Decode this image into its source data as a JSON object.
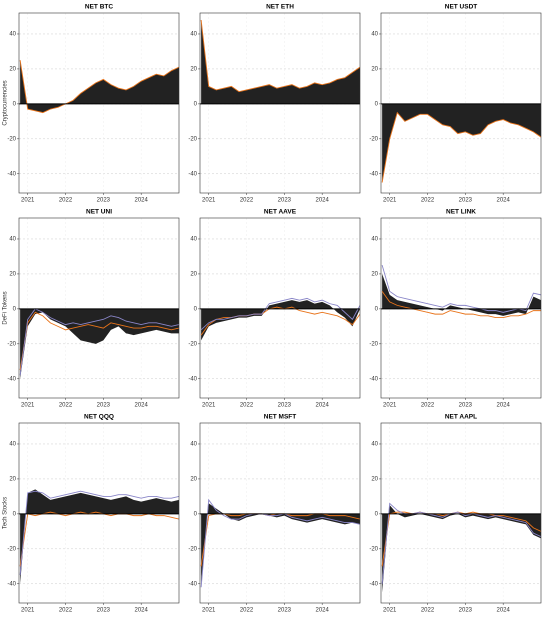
{
  "chart_data": [
    {
      "type": "area",
      "title": "NET BTC",
      "ylabel": "Cryptocurrencies",
      "x": [
        2020.8,
        2021.0,
        2021.2,
        2021.4,
        2021.6,
        2021.8,
        2022.0,
        2022.2,
        2022.4,
        2022.6,
        2022.8,
        2023.0,
        2023.2,
        2023.4,
        2023.6,
        2023.8,
        2024.0,
        2024.2,
        2024.4,
        2024.6,
        2024.8,
        2025.0
      ],
      "xlim": [
        2020.77,
        2025.0
      ],
      "xticks": [
        2021,
        2022,
        2023,
        2024
      ],
      "ylim": [
        -51,
        52
      ],
      "yticks": [
        -40,
        -20,
        0,
        20,
        40
      ],
      "grid": true,
      "series": [
        {
          "type": "area",
          "color": "#222222",
          "values": [
            25,
            -3,
            -4,
            -5,
            -3,
            -2,
            0,
            2,
            6,
            9,
            12,
            14,
            11,
            9,
            8,
            10,
            13,
            15,
            17,
            16,
            19,
            21
          ]
        },
        {
          "type": "line",
          "color": "#e8731a",
          "values": [
            25,
            -3,
            -4,
            -5,
            -3,
            -2,
            0,
            2,
            6,
            9,
            12,
            14,
            11,
            9,
            8,
            10,
            13,
            15,
            17,
            16,
            19,
            21
          ]
        }
      ]
    },
    {
      "type": "area",
      "title": "NET ETH",
      "x": [
        2020.8,
        2021.0,
        2021.2,
        2021.4,
        2021.6,
        2021.8,
        2022.0,
        2022.2,
        2022.4,
        2022.6,
        2022.8,
        2023.0,
        2023.2,
        2023.4,
        2023.6,
        2023.8,
        2024.0,
        2024.2,
        2024.4,
        2024.6,
        2024.8,
        2025.0
      ],
      "xlim": [
        2020.77,
        2025.0
      ],
      "xticks": [
        2021,
        2022,
        2023,
        2024
      ],
      "ylim": [
        -51,
        52
      ],
      "yticks": [
        -40,
        -20,
        0,
        20,
        40
      ],
      "grid": true,
      "series": [
        {
          "type": "area",
          "color": "#222222",
          "values": [
            48,
            10,
            8,
            9,
            10,
            7,
            8,
            9,
            10,
            11,
            9,
            10,
            11,
            9,
            10,
            12,
            11,
            12,
            14,
            15,
            18,
            21
          ]
        },
        {
          "type": "line",
          "color": "#e8731a",
          "values": [
            48,
            10,
            8,
            9,
            10,
            7,
            8,
            9,
            10,
            11,
            9,
            10,
            11,
            9,
            10,
            12,
            11,
            12,
            14,
            15,
            18,
            21
          ]
        }
      ]
    },
    {
      "type": "area",
      "title": "NET USDT",
      "x": [
        2020.8,
        2021.0,
        2021.2,
        2021.4,
        2021.6,
        2021.8,
        2022.0,
        2022.2,
        2022.4,
        2022.6,
        2022.8,
        2023.0,
        2023.2,
        2023.4,
        2023.6,
        2023.8,
        2024.0,
        2024.2,
        2024.4,
        2024.6,
        2024.8,
        2025.0
      ],
      "xlim": [
        2020.77,
        2025.0
      ],
      "xticks": [
        2021,
        2022,
        2023,
        2024
      ],
      "ylim": [
        -51,
        52
      ],
      "yticks": [
        -40,
        -20,
        0,
        20,
        40
      ],
      "grid": true,
      "series": [
        {
          "type": "area",
          "color": "#222222",
          "values": [
            -45,
            -20,
            -5,
            -10,
            -8,
            -6,
            -6,
            -9,
            -12,
            -13,
            -17,
            -16,
            -18,
            -17,
            -12,
            -10,
            -9,
            -11,
            -12,
            -14,
            -16,
            -19
          ]
        },
        {
          "type": "line",
          "color": "#e8731a",
          "values": [
            -45,
            -20,
            -5,
            -10,
            -8,
            -6,
            -6,
            -9,
            -12,
            -13,
            -17,
            -16,
            -18,
            -17,
            -12,
            -10,
            -9,
            -11,
            -12,
            -14,
            -16,
            -19
          ]
        }
      ]
    },
    {
      "type": "area",
      "title": "NET UNI",
      "ylabel": "DeFi Tokens",
      "x": [
        2020.8,
        2021.0,
        2021.2,
        2021.4,
        2021.6,
        2021.8,
        2022.0,
        2022.2,
        2022.4,
        2022.6,
        2022.8,
        2023.0,
        2023.2,
        2023.4,
        2023.6,
        2023.8,
        2024.0,
        2024.2,
        2024.4,
        2024.6,
        2024.8,
        2025.0
      ],
      "xlim": [
        2020.77,
        2025.0
      ],
      "xticks": [
        2021,
        2022,
        2023,
        2024
      ],
      "ylim": [
        -51,
        52
      ],
      "yticks": [
        -40,
        -20,
        0,
        20,
        40
      ],
      "grid": true,
      "series": [
        {
          "type": "area",
          "color": "#222222",
          "values": [
            -40,
            -10,
            -3,
            -2,
            -6,
            -8,
            -10,
            -14,
            -18,
            -19,
            -20,
            -18,
            -12,
            -10,
            -14,
            -15,
            -14,
            -13,
            -12,
            -13,
            -14,
            -14
          ]
        },
        {
          "type": "line",
          "color": "#e8731a",
          "values": [
            -35,
            -8,
            -2,
            -4,
            -8,
            -10,
            -12,
            -11,
            -10,
            -9,
            -10,
            -11,
            -8,
            -9,
            -10,
            -11,
            -11,
            -10,
            -10,
            -11,
            -12,
            -11
          ]
        },
        {
          "type": "line",
          "color": "#8a86c8",
          "values": [
            -38,
            -6,
            0,
            -2,
            -5,
            -7,
            -9,
            -8,
            -9,
            -8,
            -7,
            -6,
            -4,
            -5,
            -7,
            -8,
            -9,
            -8,
            -8,
            -9,
            -10,
            -9
          ]
        }
      ]
    },
    {
      "type": "area",
      "title": "NET AAVE",
      "x": [
        2020.8,
        2021.0,
        2021.2,
        2021.4,
        2021.6,
        2021.8,
        2022.0,
        2022.2,
        2022.4,
        2022.6,
        2022.8,
        2023.0,
        2023.2,
        2023.4,
        2023.6,
        2023.8,
        2024.0,
        2024.2,
        2024.4,
        2024.6,
        2024.8,
        2025.0
      ],
      "xlim": [
        2020.77,
        2025.0
      ],
      "xticks": [
        2021,
        2022,
        2023,
        2024
      ],
      "ylim": [
        -51,
        52
      ],
      "yticks": [
        -40,
        -20,
        0,
        20,
        40
      ],
      "grid": true,
      "series": [
        {
          "type": "area",
          "color": "#222222",
          "values": [
            -18,
            -10,
            -8,
            -7,
            -6,
            -5,
            -5,
            -4,
            -4,
            2,
            3,
            4,
            5,
            4,
            5,
            3,
            4,
            2,
            -2,
            -5,
            -10,
            0
          ]
        },
        {
          "type": "line",
          "color": "#e8731a",
          "values": [
            -15,
            -9,
            -6,
            -5,
            -5,
            -4,
            -4,
            -3,
            -3,
            0,
            1,
            0,
            1,
            -1,
            -2,
            -3,
            -2,
            -3,
            -4,
            -6,
            -9,
            -3
          ]
        },
        {
          "type": "line",
          "color": "#8a86c8",
          "values": [
            -12,
            -8,
            -6,
            -6,
            -5,
            -4,
            -4,
            -3,
            -3,
            3,
            4,
            5,
            6,
            5,
            6,
            4,
            5,
            3,
            2,
            -2,
            -6,
            2
          ]
        }
      ]
    },
    {
      "type": "area",
      "title": "NET LINK",
      "x": [
        2020.8,
        2021.0,
        2021.2,
        2021.4,
        2021.6,
        2021.8,
        2022.0,
        2022.2,
        2022.4,
        2022.6,
        2022.8,
        2023.0,
        2023.2,
        2023.4,
        2023.6,
        2023.8,
        2024.0,
        2024.2,
        2024.4,
        2024.6,
        2024.8,
        2025.0
      ],
      "xlim": [
        2020.77,
        2025.0
      ],
      "xticks": [
        2021,
        2022,
        2023,
        2024
      ],
      "ylim": [
        -51,
        52
      ],
      "yticks": [
        -40,
        -20,
        0,
        20,
        40
      ],
      "grid": true,
      "series": [
        {
          "type": "area",
          "color": "#222222",
          "values": [
            20,
            8,
            5,
            4,
            3,
            2,
            1,
            0,
            -1,
            2,
            1,
            0,
            -1,
            -2,
            -3,
            -3,
            -4,
            -3,
            -2,
            -3,
            7,
            5
          ]
        },
        {
          "type": "line",
          "color": "#e8731a",
          "values": [
            10,
            4,
            2,
            1,
            0,
            -1,
            -2,
            -3,
            -3,
            -1,
            -2,
            -3,
            -3,
            -4,
            -4,
            -5,
            -5,
            -4,
            -4,
            -3,
            -1,
            -1
          ]
        },
        {
          "type": "line",
          "color": "#8a86c8",
          "values": [
            25,
            10,
            7,
            6,
            5,
            4,
            3,
            2,
            1,
            3,
            2,
            2,
            1,
            0,
            -1,
            -1,
            -2,
            -1,
            0,
            -1,
            9,
            8
          ]
        }
      ]
    },
    {
      "type": "area",
      "title": "NET QQQ",
      "ylabel": "Tech Stocks",
      "x": [
        2020.8,
        2021.0,
        2021.2,
        2021.4,
        2021.6,
        2021.8,
        2022.0,
        2022.2,
        2022.4,
        2022.6,
        2022.8,
        2023.0,
        2023.2,
        2023.4,
        2023.6,
        2023.8,
        2024.0,
        2024.2,
        2024.4,
        2024.6,
        2024.8,
        2025.0
      ],
      "xlim": [
        2020.77,
        2025.0
      ],
      "xticks": [
        2021,
        2022,
        2023,
        2024
      ],
      "ylim": [
        -51,
        52
      ],
      "yticks": [
        -40,
        -20,
        0,
        20,
        40
      ],
      "grid": true,
      "series": [
        {
          "type": "area",
          "color": "#222222",
          "values": [
            -40,
            12,
            14,
            11,
            8,
            9,
            10,
            11,
            12,
            11,
            10,
            9,
            8,
            9,
            10,
            8,
            7,
            8,
            9,
            8,
            7,
            8
          ]
        },
        {
          "type": "line",
          "color": "#e8731a",
          "values": [
            -30,
            0,
            -1,
            0,
            1,
            0,
            -1,
            0,
            1,
            0,
            1,
            0,
            -1,
            0,
            0,
            -1,
            -1,
            0,
            -1,
            -1,
            -2,
            -3
          ]
        },
        {
          "type": "line",
          "color": "#8a86c8",
          "values": [
            -35,
            12,
            13,
            12,
            9,
            10,
            11,
            12,
            13,
            12,
            11,
            10,
            10,
            11,
            11,
            10,
            9,
            10,
            10,
            9,
            9,
            10
          ]
        }
      ]
    },
    {
      "type": "area",
      "title": "NET MSFT",
      "x": [
        2020.8,
        2021.0,
        2021.2,
        2021.4,
        2021.6,
        2021.8,
        2022.0,
        2022.2,
        2022.4,
        2022.6,
        2022.8,
        2023.0,
        2023.2,
        2023.4,
        2023.6,
        2023.8,
        2024.0,
        2024.2,
        2024.4,
        2024.6,
        2024.8,
        2025.0
      ],
      "xlim": [
        2020.77,
        2025.0
      ],
      "xticks": [
        2021,
        2022,
        2023,
        2024
      ],
      "ylim": [
        -51,
        52
      ],
      "yticks": [
        -40,
        -20,
        0,
        20,
        40
      ],
      "grid": true,
      "series": [
        {
          "type": "area",
          "color": "#222222",
          "values": [
            -40,
            6,
            3,
            0,
            -3,
            -4,
            -2,
            -1,
            0,
            -1,
            -2,
            -1,
            -3,
            -4,
            -5,
            -4,
            -3,
            -4,
            -5,
            -6,
            -5,
            -6
          ]
        },
        {
          "type": "line",
          "color": "#e8731a",
          "values": [
            -30,
            -1,
            0,
            0,
            -1,
            -1,
            0,
            0,
            0,
            -1,
            0,
            0,
            -1,
            -1,
            -1,
            0,
            0,
            -1,
            -1,
            -1,
            -2,
            -3
          ]
        },
        {
          "type": "line",
          "color": "#8a86c8",
          "values": [
            -42,
            8,
            2,
            -1,
            -3,
            -3,
            -1,
            0,
            0,
            -1,
            -1,
            0,
            -2,
            -3,
            -4,
            -3,
            -2,
            -3,
            -4,
            -5,
            -5,
            -6
          ]
        }
      ]
    },
    {
      "type": "area",
      "title": "NET AAPL",
      "x": [
        2020.8,
        2021.0,
        2021.2,
        2021.4,
        2021.6,
        2021.8,
        2022.0,
        2022.2,
        2022.4,
        2022.6,
        2022.8,
        2023.0,
        2023.2,
        2023.4,
        2023.6,
        2023.8,
        2024.0,
        2024.2,
        2024.4,
        2024.6,
        2024.8,
        2025.0
      ],
      "xlim": [
        2020.77,
        2025.0
      ],
      "xticks": [
        2021,
        2022,
        2023,
        2024
      ],
      "ylim": [
        -51,
        52
      ],
      "yticks": [
        -40,
        -20,
        0,
        20,
        40
      ],
      "grid": true,
      "series": [
        {
          "type": "area",
          "color": "#222222",
          "values": [
            -45,
            5,
            0,
            -2,
            -1,
            0,
            -1,
            -2,
            -3,
            -1,
            0,
            -2,
            -1,
            -2,
            -3,
            -2,
            -3,
            -4,
            -5,
            -6,
            -12,
            -14
          ]
        },
        {
          "type": "line",
          "color": "#e8731a",
          "values": [
            -30,
            0,
            1,
            1,
            0,
            1,
            0,
            0,
            -1,
            0,
            1,
            0,
            1,
            0,
            0,
            -1,
            -1,
            -2,
            -3,
            -4,
            -8,
            -10
          ]
        },
        {
          "type": "line",
          "color": "#8a86c8",
          "values": [
            -40,
            6,
            2,
            0,
            0,
            1,
            0,
            -1,
            -2,
            0,
            1,
            -1,
            0,
            -1,
            -2,
            -1,
            -2,
            -3,
            -4,
            -5,
            -11,
            -13
          ]
        }
      ]
    }
  ]
}
